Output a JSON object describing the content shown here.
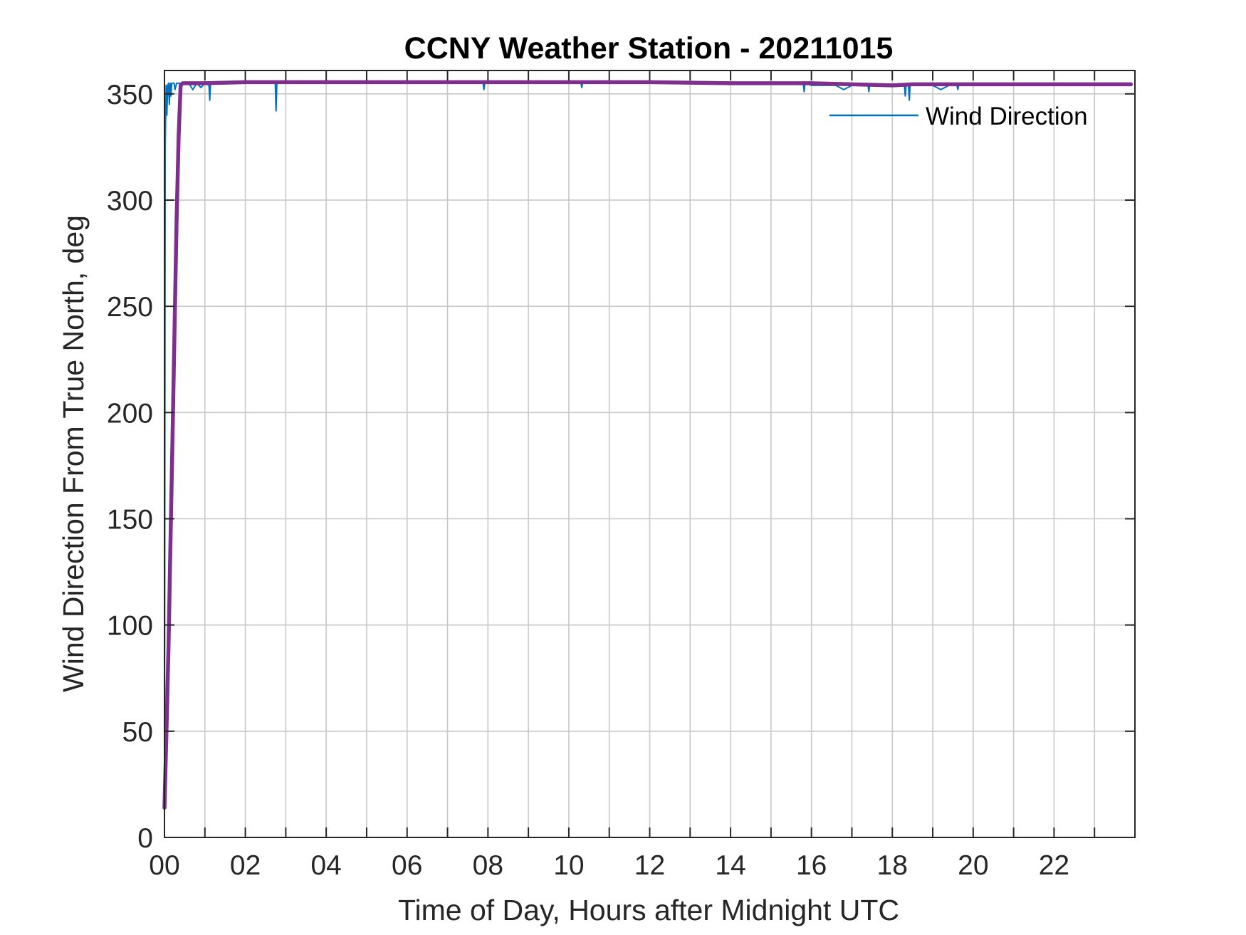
{
  "chart_data": {
    "type": "line",
    "title": "CCNY Weather Station - 20211015",
    "xlabel": "Time of Day, Hours after Midnight UTC",
    "ylabel": "Wind Direction From True North, deg",
    "xlim": [
      0,
      24
    ],
    "ylim": [
      0,
      361
    ],
    "xticks": [
      0,
      2,
      4,
      6,
      8,
      10,
      12,
      14,
      16,
      18,
      20,
      22
    ],
    "xtick_labels": [
      "00",
      "02",
      "04",
      "06",
      "08",
      "10",
      "12",
      "14",
      "16",
      "18",
      "20",
      "22"
    ],
    "yticks": [
      0,
      50,
      100,
      150,
      200,
      250,
      300,
      350
    ],
    "ytick_labels": [
      "0",
      "50",
      "100",
      "150",
      "200",
      "250",
      "300",
      "350"
    ],
    "grid": true,
    "legend": {
      "position": "top-right",
      "entries": [
        "Wind Direction"
      ]
    },
    "series": [
      {
        "name": "Wind Direction",
        "color": "#0072BD",
        "x": [
          0.0,
          0.02,
          0.04,
          0.06,
          0.08,
          0.1,
          0.12,
          0.14,
          0.16,
          0.18,
          0.2,
          0.22,
          0.24,
          0.26,
          0.3,
          0.35,
          0.4,
          0.5,
          0.6,
          0.7,
          0.8,
          0.9,
          1.0,
          1.1,
          1.12,
          1.14,
          1.2,
          1.5,
          2.0,
          2.5,
          2.74,
          2.76,
          2.78,
          2.8,
          3.0,
          4.0,
          5.0,
          6.0,
          7.0,
          7.88,
          7.9,
          7.92,
          8.0,
          9.0,
          10.0,
          10.3,
          10.32,
          10.34,
          11.0,
          12.0,
          13.0,
          14.0,
          15.0,
          15.6,
          15.8,
          15.82,
          15.84,
          16.0,
          16.2,
          16.4,
          16.6,
          16.8,
          17.0,
          17.2,
          17.4,
          17.42,
          17.44,
          17.6,
          17.8,
          18.0,
          18.2,
          18.3,
          18.32,
          18.34,
          18.4,
          18.42,
          18.44,
          18.5,
          18.6,
          18.8,
          19.0,
          19.2,
          19.4,
          19.6,
          19.62,
          19.64,
          20.0,
          21.0,
          22.0,
          23.0,
          23.9
        ],
        "values": [
          14,
          325,
          354,
          340,
          354,
          355,
          345,
          355,
          349,
          355,
          355,
          355,
          355,
          352,
          355,
          355,
          355,
          355,
          355,
          352,
          355,
          353,
          355,
          354,
          347,
          355,
          355,
          355,
          355,
          355,
          355,
          342,
          355,
          355,
          355,
          355,
          355,
          355,
          355,
          355,
          352,
          355,
          355,
          355,
          355,
          355,
          353,
          355,
          355,
          355,
          355,
          355,
          355,
          355,
          355,
          351,
          355,
          354,
          354,
          354,
          354,
          352,
          354,
          354,
          354,
          351,
          354,
          354,
          354,
          354,
          354,
          354,
          349,
          354,
          354,
          347,
          354,
          354,
          354,
          354,
          354,
          352,
          354,
          354,
          352,
          354,
          354,
          354,
          354,
          354,
          354
        ]
      },
      {
        "name": "",
        "color": "#7E2F8E",
        "x": [
          0.0,
          0.05,
          0.1,
          0.15,
          0.2,
          0.25,
          0.3,
          0.35,
          0.4,
          0.45,
          0.5,
          1.0,
          2.0,
          3.0,
          4.0,
          6.0,
          8.0,
          10.0,
          12.0,
          14.0,
          16.0,
          17.0,
          18.0,
          18.5,
          19.0,
          20.0,
          22.0,
          23.9
        ],
        "values": [
          14,
          50,
          90,
          140,
          190,
          240,
          290,
          330,
          354,
          355,
          355,
          355,
          355.5,
          355.5,
          355.5,
          355.5,
          355.5,
          355.5,
          355.5,
          355,
          355,
          354.5,
          354,
          354.5,
          354.5,
          354.5,
          354.5,
          354.5
        ]
      }
    ]
  }
}
